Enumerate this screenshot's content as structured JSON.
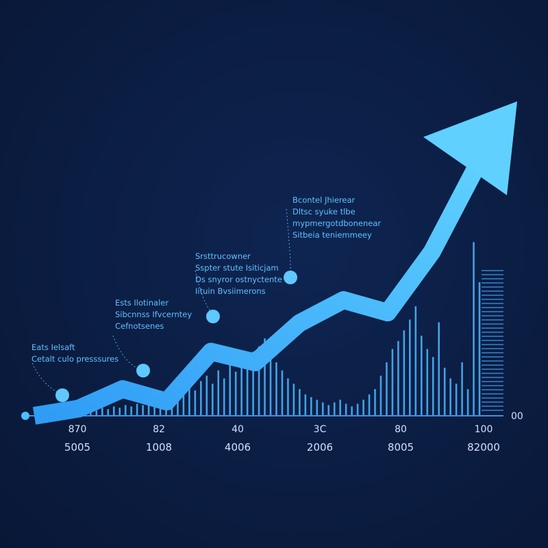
{
  "chart_data": {
    "type": "line",
    "title": "",
    "xlabel": "",
    "ylabel": "",
    "axis_end_label": "00",
    "x_tick_labels_top": [
      "870",
      "82",
      "40",
      "3C",
      "80",
      "100"
    ],
    "x_tick_labels_bottom": [
      "5005",
      "1008",
      "4006",
      "2006",
      "8005",
      "82000"
    ],
    "series": [
      {
        "x": [
          0,
          1,
          2,
          3,
          4,
          5,
          6,
          7,
          8,
          9,
          10
        ],
        "values": [
          0,
          4,
          15,
          8,
          36,
          30,
          52,
          65,
          58,
          92,
          122
        ]
      }
    ],
    "bars": [
      2,
      3,
      2,
      4,
      3,
      5,
      4,
      6,
      5,
      7,
      6,
      8,
      7,
      9,
      8,
      10,
      9,
      12,
      10,
      14,
      18,
      16,
      22,
      19,
      26,
      30,
      24,
      34,
      28,
      38,
      33,
      44,
      40,
      48,
      52,
      58,
      46,
      40,
      34,
      28,
      24,
      20,
      16,
      14,
      12,
      10,
      8,
      10,
      12,
      9,
      7,
      9,
      12,
      16,
      20,
      30,
      40,
      50,
      56,
      64,
      72,
      82,
      60,
      50,
      44,
      70,
      36,
      28,
      24,
      40,
      20,
      130,
      100
    ],
    "annotations": [
      {
        "lines": [
          "Eats Ielsaft",
          "Cetalt culo presssures"
        ]
      },
      {
        "lines": [
          "Ests Ilotinaler",
          "Sibcnnss Ifvcerntey",
          "Cefnotsenes"
        ]
      },
      {
        "lines": [
          "Srsttrucowner",
          "Sspter stute Isiticjam",
          "Ds snyror ostnyctente",
          "Iituin Bvsiimerons"
        ]
      },
      {
        "lines": [
          "Bcontel Jhierear",
          "Dltsc syuke tlbe",
          "mypmergotdbonenear",
          "Sitbeia teniemmeey"
        ]
      }
    ],
    "colors": {
      "background": "#0b1d42",
      "arrow": "#4cc0ff",
      "bars": "#4fb8ff",
      "text": "#cfe0ff",
      "annotation": "#5ec2ff"
    }
  }
}
